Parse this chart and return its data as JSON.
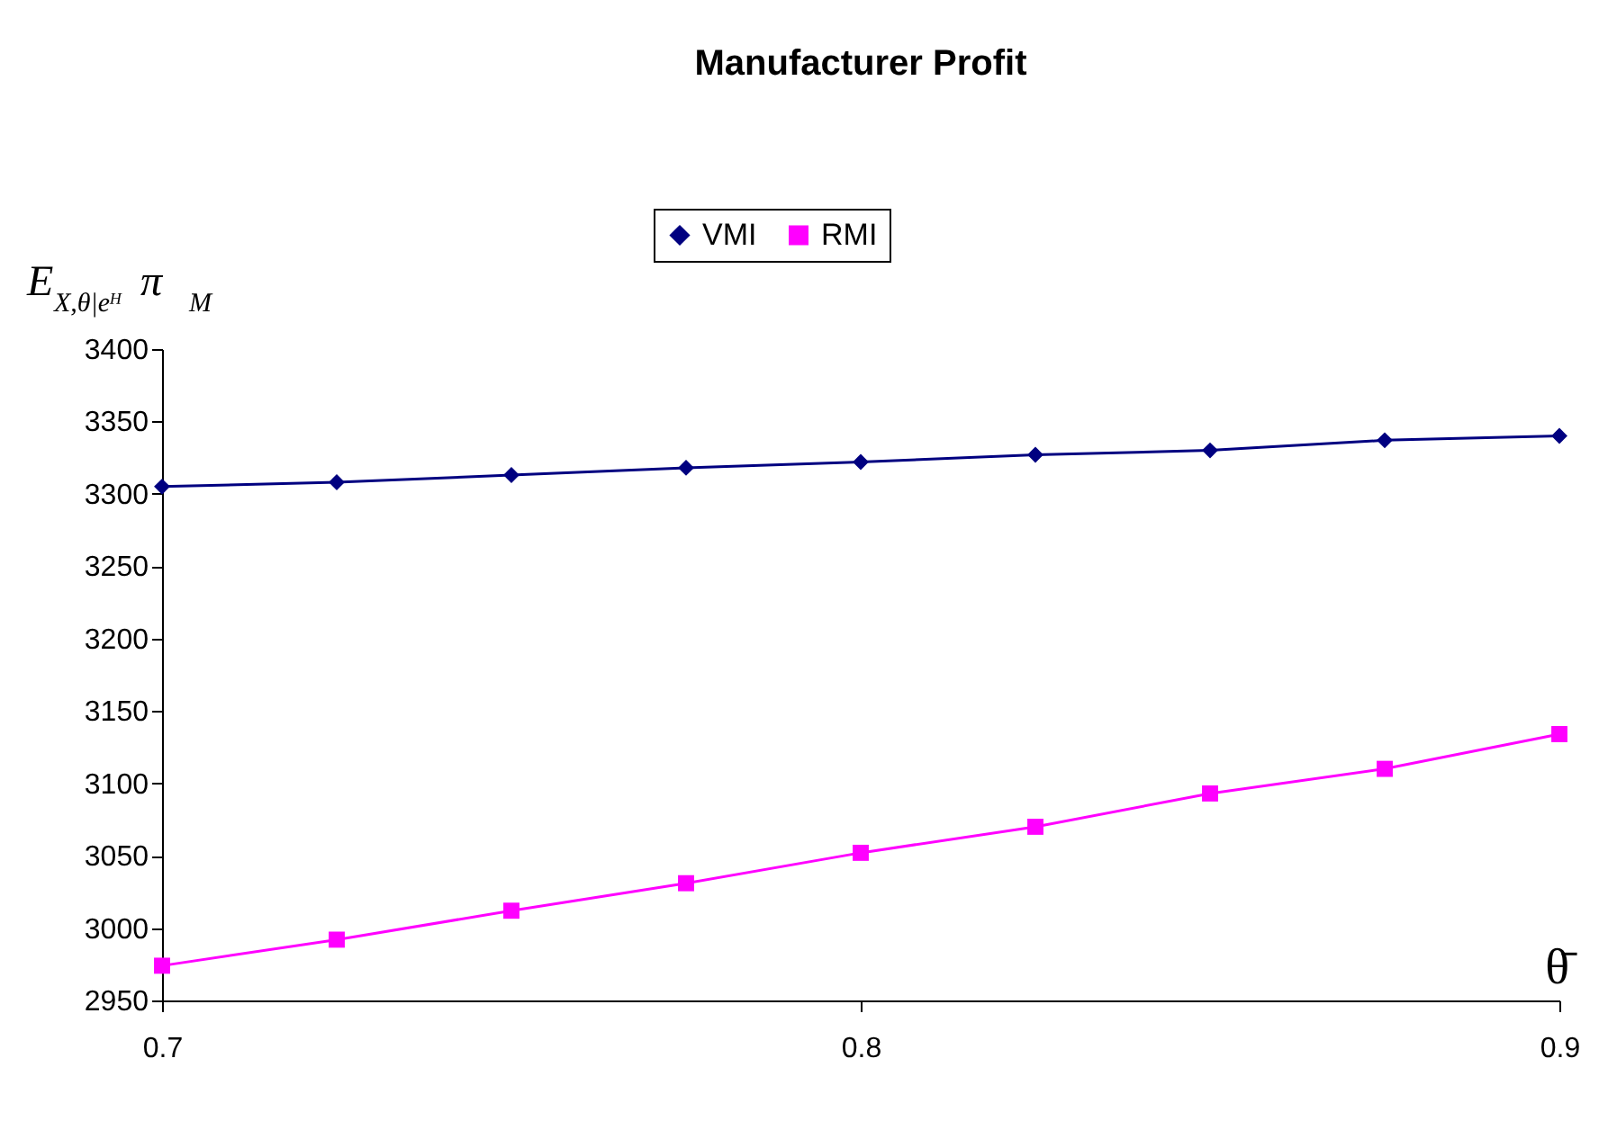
{
  "chart_data": {
    "type": "line",
    "title": "Manufacturer Profit",
    "ylabel": "E$_{X,θ|eᴴ}$ π$_{M}$",
    "xlabel": "θ̄",
    "x": [
      0.7,
      0.725,
      0.75,
      0.775,
      0.8,
      0.825,
      0.85,
      0.875,
      0.9
    ],
    "series": [
      {
        "name": "VMI",
        "color": "#000080",
        "marker": "diamond",
        "values": [
          3305,
          3308,
          3313,
          3318,
          3322,
          3327,
          3330,
          3337,
          3340
        ]
      },
      {
        "name": "RMI",
        "color": "#ff00ff",
        "marker": "square",
        "values": [
          2974,
          2992,
          3012,
          3031,
          3052,
          3070,
          3093,
          3110,
          3134
        ]
      }
    ],
    "xlim": [
      0.7,
      0.9
    ],
    "xticks": [
      0.7,
      0.8,
      0.9
    ],
    "ylim": [
      2950,
      3400
    ],
    "yticks": [
      2950,
      3000,
      3050,
      3100,
      3150,
      3200,
      3250,
      3300,
      3350,
      3400
    ],
    "grid": false,
    "legend": "top",
    "line_style": "solid"
  }
}
